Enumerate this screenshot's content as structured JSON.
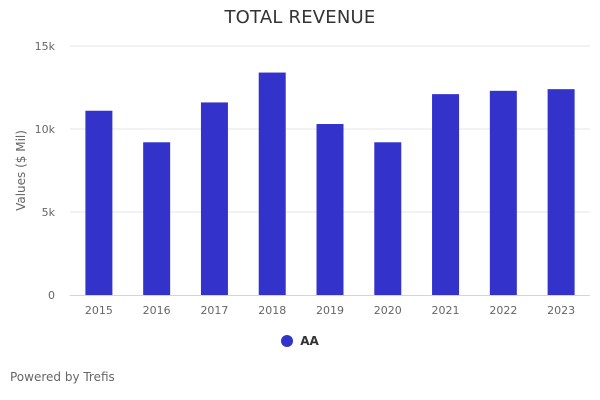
{
  "chart_data": {
    "type": "bar",
    "title": "TOTAL REVENUE",
    "xlabel": "",
    "ylabel": "Values ($ Mil)",
    "categories": [
      "2015",
      "2016",
      "2017",
      "2018",
      "2019",
      "2020",
      "2021",
      "2022",
      "2023"
    ],
    "series": [
      {
        "name": "AA",
        "color": "#3333cc",
        "values": [
          11100,
          9200,
          11600,
          13400,
          10300,
          9200,
          12100,
          12300,
          12400
        ]
      }
    ],
    "ylim": [
      0,
      15000
    ],
    "yticks": [
      0,
      5000,
      10000,
      15000
    ],
    "ytick_labels": [
      "0",
      "5k",
      "10k",
      "15k"
    ],
    "grid": true,
    "legend_position": "bottom-center"
  },
  "footer": {
    "credits": "Powered by Trefis"
  }
}
